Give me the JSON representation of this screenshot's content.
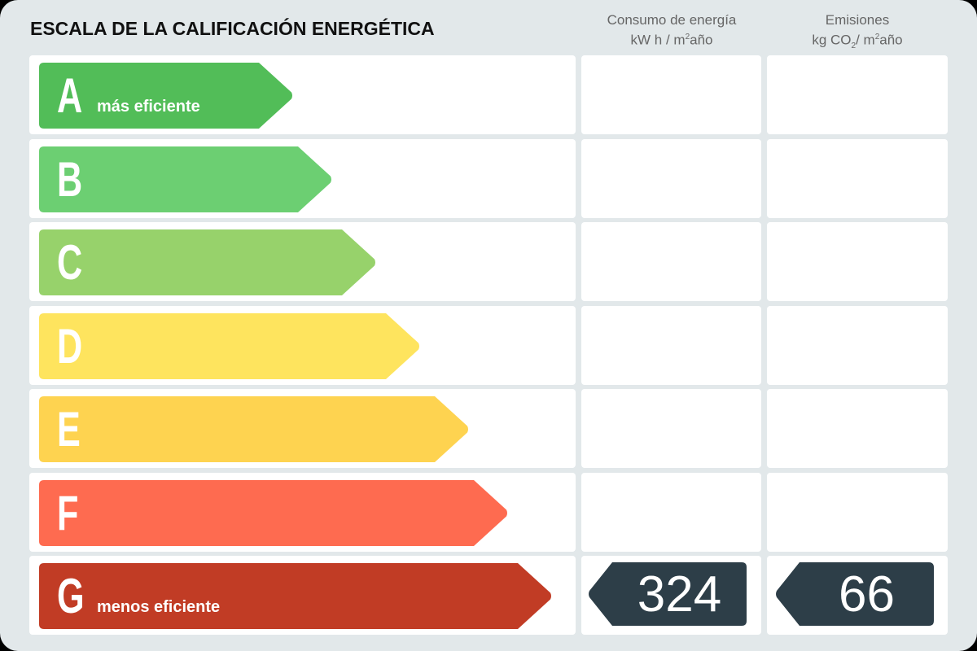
{
  "title": "ESCALA DE LA CALIFICACIÓN ENERGÉTICA",
  "columns": {
    "consumption": {
      "line1": "Consumo de energía",
      "line2_pre": "kW h / m",
      "line2_sup": "2",
      "line2_post": "año"
    },
    "emissions": {
      "line1": "Emisiones",
      "line2_pre": "kg CO",
      "line2_sub": "2",
      "line2_mid": "/ m",
      "line2_sup": "2",
      "line2_post": "año"
    }
  },
  "ratings": [
    {
      "letter": "A",
      "label": "más eficiente",
      "color": "#52bd58"
    },
    {
      "letter": "B",
      "label": "",
      "color": "#6ccf72"
    },
    {
      "letter": "C",
      "label": "",
      "color": "#97d26b"
    },
    {
      "letter": "D",
      "label": "",
      "color": "#fee45e"
    },
    {
      "letter": "E",
      "label": "",
      "color": "#fed350"
    },
    {
      "letter": "F",
      "label": "",
      "color": "#fe6b50"
    },
    {
      "letter": "G",
      "label": "menos eficiente",
      "color": "#c13c25"
    }
  ],
  "current_rating": "G",
  "values": {
    "consumption": "324",
    "emissions": "66",
    "badge_color": "#2d3e48"
  }
}
